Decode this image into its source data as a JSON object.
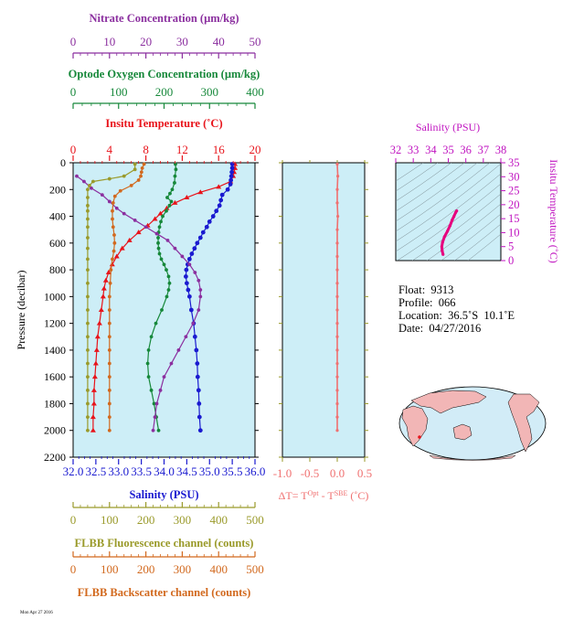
{
  "chart_data": [
    {
      "type": "line",
      "y_axis": {
        "label": "Pressure (decibar)",
        "range": [
          0,
          2200
        ],
        "inverted": true,
        "ticks": [
          "0",
          "200",
          "400",
          "600",
          "800",
          "1000",
          "1200",
          "1400",
          "1600",
          "1800",
          "2000",
          "2200"
        ]
      },
      "x_axes": [
        {
          "id": "nitrate",
          "label": "Nitrate Concentration (µm/kg)",
          "range": [
            0,
            50
          ],
          "ticks": [
            "0",
            "10",
            "20",
            "30",
            "40",
            "50"
          ],
          "color": "#8b2f9f",
          "position": "top"
        },
        {
          "id": "oxygen",
          "label": "Optode Oxygen Concentration (µm/kg)",
          "range": [
            0,
            400
          ],
          "ticks": [
            "0",
            "100",
            "200",
            "300",
            "400"
          ],
          "color": "#16883a",
          "position": "top"
        },
        {
          "id": "temperature",
          "label": "Insitu Temperature (˚C)",
          "range": [
            0,
            20
          ],
          "ticks": [
            "0",
            "4",
            "8",
            "12",
            "16",
            "20"
          ],
          "color": "#e8141b",
          "position": "top"
        },
        {
          "id": "salinity",
          "label": "Salinity (PSU)",
          "range": [
            32.0,
            36.0
          ],
          "ticks": [
            "32.0",
            "32.5",
            "33.0",
            "33.5",
            "34.0",
            "34.5",
            "35.0",
            "35.5",
            "36.0"
          ],
          "color": "#1a1ad0",
          "position": "bottom"
        },
        {
          "id": "fluor",
          "label": "FLBB Fluorescence channel (counts)",
          "range": [
            0,
            500
          ],
          "ticks": [
            "0",
            "100",
            "200",
            "300",
            "400",
            "500"
          ],
          "color": "#9a9a2a",
          "position": "bottom"
        },
        {
          "id": "backscatter",
          "label": "FLBB Backscatter channel (counts)",
          "range": [
            0,
            500
          ],
          "ticks": [
            "0",
            "100",
            "200",
            "300",
            "400",
            "500"
          ],
          "color": "#d2691e",
          "position": "bottom"
        }
      ],
      "series": [
        {
          "axis": "temperature",
          "color": "#e8141b",
          "marker": "triangle",
          "points": [
            [
              17.8,
              10
            ],
            [
              17.8,
              40
            ],
            [
              17.7,
              70
            ],
            [
              17.6,
              100
            ],
            [
              17.3,
              140
            ],
            [
              16.0,
              180
            ],
            [
              14.0,
              220
            ],
            [
              12.5,
              260
            ],
            [
              11.2,
              300
            ],
            [
              10.3,
              340
            ],
            [
              9.6,
              380
            ],
            [
              9.0,
              420
            ],
            [
              8.2,
              470
            ],
            [
              7.2,
              520
            ],
            [
              6.2,
              580
            ],
            [
              5.4,
              640
            ],
            [
              4.8,
              700
            ],
            [
              4.3,
              760
            ],
            [
              3.9,
              820
            ],
            [
              3.6,
              880
            ],
            [
              3.4,
              940
            ],
            [
              3.3,
              1000
            ],
            [
              3.1,
              1100
            ],
            [
              2.9,
              1200
            ],
            [
              2.7,
              1300
            ],
            [
              2.6,
              1400
            ],
            [
              2.5,
              1500
            ],
            [
              2.4,
              1600
            ],
            [
              2.3,
              1700
            ],
            [
              2.3,
              1800
            ],
            [
              2.2,
              1900
            ],
            [
              2.2,
              2000
            ]
          ]
        },
        {
          "axis": "salinity",
          "color": "#1a1ad0",
          "marker": "circle",
          "points": [
            [
              35.5,
              10
            ],
            [
              35.5,
              40
            ],
            [
              35.49,
              70
            ],
            [
              35.48,
              100
            ],
            [
              35.47,
              130
            ],
            [
              35.46,
              160
            ],
            [
              35.4,
              200
            ],
            [
              35.28,
              240
            ],
            [
              35.25,
              280
            ],
            [
              35.22,
              320
            ],
            [
              35.15,
              360
            ],
            [
              35.08,
              400
            ],
            [
              35.0,
              440
            ],
            [
              34.94,
              480
            ],
            [
              34.86,
              520
            ],
            [
              34.8,
              560
            ],
            [
              34.73,
              600
            ],
            [
              34.67,
              640
            ],
            [
              34.61,
              680
            ],
            [
              34.56,
              720
            ],
            [
              34.52,
              760
            ],
            [
              34.49,
              800
            ],
            [
              34.48,
              850
            ],
            [
              34.5,
              900
            ],
            [
              34.53,
              950
            ],
            [
              34.56,
              1000
            ],
            [
              34.6,
              1100
            ],
            [
              34.65,
              1200
            ],
            [
              34.68,
              1300
            ],
            [
              34.71,
              1400
            ],
            [
              34.73,
              1500
            ],
            [
              34.74,
              1600
            ],
            [
              34.76,
              1700
            ],
            [
              34.77,
              1800
            ],
            [
              34.78,
              1900
            ],
            [
              34.8,
              2000
            ]
          ]
        },
        {
          "axis": "oxygen",
          "color": "#16883a",
          "marker": "circle",
          "points": [
            [
              225,
              10
            ],
            [
              226,
              50
            ],
            [
              224,
              100
            ],
            [
              223,
              150
            ],
            [
              218,
              200
            ],
            [
              213,
              230
            ],
            [
              207,
              260
            ],
            [
              216,
              290
            ],
            [
              212,
              320
            ],
            [
              205,
              360
            ],
            [
              197,
              400
            ],
            [
              193,
              440
            ],
            [
              190,
              480
            ],
            [
              188,
              520
            ],
            [
              187,
              560
            ],
            [
              187,
              600
            ],
            [
              188,
              640
            ],
            [
              190,
              680
            ],
            [
              194,
              720
            ],
            [
              200,
              760
            ],
            [
              205,
              800
            ],
            [
              210,
              850
            ],
            [
              212,
              900
            ],
            [
              210,
              950
            ],
            [
              206,
              1000
            ],
            [
              195,
              1100
            ],
            [
              182,
              1200
            ],
            [
              172,
              1300
            ],
            [
              166,
              1400
            ],
            [
              164,
              1500
            ],
            [
              166,
              1600
            ],
            [
              172,
              1700
            ],
            [
              178,
              1800
            ],
            [
              183,
              1900
            ],
            [
              188,
              2000
            ]
          ]
        },
        {
          "axis": "nitrate",
          "color": "#8b2f9f",
          "marker": "circle",
          "points": [
            [
              1,
              100
            ],
            [
              3,
              140
            ],
            [
              5,
              190
            ],
            [
              8,
              240
            ],
            [
              10,
              290
            ],
            [
              12,
              340
            ],
            [
              14,
              380
            ],
            [
              17,
              430
            ],
            [
              20,
              480
            ],
            [
              23,
              530
            ],
            [
              26,
              580
            ],
            [
              28,
              640
            ],
            [
              30,
              700
            ],
            [
              32,
              760
            ],
            [
              33.5,
              820
            ],
            [
              34.5,
              880
            ],
            [
              35,
              950
            ],
            [
              35,
              1000
            ],
            [
              34.5,
              1100
            ],
            [
              33,
              1200
            ],
            [
              31,
              1300
            ],
            [
              29,
              1400
            ],
            [
              27,
              1500
            ],
            [
              25,
              1600
            ],
            [
              24,
              1700
            ],
            [
              23,
              1800
            ],
            [
              22.5,
              1900
            ],
            [
              22,
              2000
            ]
          ]
        },
        {
          "axis": "fluor",
          "color": "#9a9a2a",
          "marker": "circle",
          "points": [
            [
              170,
              10
            ],
            [
              170,
              50
            ],
            [
              140,
              100
            ],
            [
              100,
              120
            ],
            [
              55,
              140
            ],
            [
              45,
              170
            ],
            [
              40,
              200
            ],
            [
              40,
              260
            ],
            [
              40,
              320
            ],
            [
              40,
              360
            ],
            [
              40,
              420
            ],
            [
              40,
              480
            ],
            [
              40,
              560
            ],
            [
              40,
              640
            ],
            [
              40,
              720
            ],
            [
              40,
              800
            ],
            [
              40,
              900
            ],
            [
              40,
              1000
            ],
            [
              40,
              1100
            ],
            [
              40,
              1200
            ],
            [
              40,
              1300
            ],
            [
              40,
              1400
            ],
            [
              40,
              1500
            ],
            [
              40,
              1600
            ],
            [
              40,
              1700
            ],
            [
              40,
              1800
            ],
            [
              40,
              1900
            ],
            [
              40,
              2000
            ]
          ]
        },
        {
          "axis": "backscatter",
          "color": "#d2691e",
          "marker": "circle",
          "points": [
            [
              195,
              10
            ],
            [
              190,
              40
            ],
            [
              188,
              70
            ],
            [
              186,
              100
            ],
            [
              180,
              130
            ],
            [
              160,
              170
            ],
            [
              130,
              210
            ],
            [
              115,
              250
            ],
            [
              110,
              300
            ],
            [
              108,
              360
            ],
            [
              108,
              420
            ],
            [
              110,
              480
            ],
            [
              113,
              540
            ],
            [
              114,
              600
            ],
            [
              112,
              660
            ],
            [
              108,
              720
            ],
            [
              104,
              800
            ],
            [
              102,
              900
            ],
            [
              100,
              1000
            ],
            [
              100,
              1100
            ],
            [
              100,
              1200
            ],
            [
              100,
              1300
            ],
            [
              100,
              1400
            ],
            [
              100,
              1500
            ],
            [
              100,
              1600
            ],
            [
              100,
              1700
            ],
            [
              100,
              1800
            ],
            [
              100,
              1900
            ],
            [
              100,
              2000
            ]
          ]
        }
      ]
    },
    {
      "type": "line",
      "xlabel": "ΔT= T",
      "xlabel_sup1": "Opt",
      "xlabel_mid": " - T",
      "xlabel_sup2": "SBE",
      "xlabel_unit": " (˚C)",
      "xlim": [
        -1.0,
        0.5
      ],
      "x_ticks": [
        "-1.0",
        "-0.5",
        "0.0",
        "0.5"
      ],
      "ylim": [
        0,
        2200
      ],
      "color": "#f07070",
      "series": [
        {
          "points": [
            [
              0.0,
              10
            ],
            [
              0.01,
              100
            ],
            [
              0.0,
              200
            ],
            [
              0.0,
              300
            ],
            [
              0.01,
              400
            ],
            [
              0.0,
              500
            ],
            [
              0.0,
              600
            ],
            [
              0.0,
              700
            ],
            [
              0.0,
              800
            ],
            [
              0.0,
              900
            ],
            [
              0.0,
              1000
            ],
            [
              0.0,
              1100
            ],
            [
              0.0,
              1200
            ],
            [
              0.0,
              1300
            ],
            [
              0.0,
              1400
            ],
            [
              0.0,
              1500
            ],
            [
              0.0,
              1600
            ],
            [
              0.0,
              1700
            ],
            [
              0.0,
              1800
            ],
            [
              0.0,
              1900
            ],
            [
              0.0,
              2000
            ]
          ]
        }
      ]
    },
    {
      "type": "line",
      "title": "Salinity (PSU)",
      "xlim": [
        32,
        38
      ],
      "x_ticks": [
        "32",
        "33",
        "34",
        "35",
        "36",
        "37",
        "38"
      ],
      "ylabel": "Insitu Temperature (˚C)",
      "ylim": [
        0,
        35
      ],
      "y_ticks": [
        "0",
        "5",
        "10",
        "15",
        "20",
        "25",
        "30",
        "35"
      ],
      "color": "#e6007e",
      "series": [
        {
          "points": [
            [
              34.7,
              2.2
            ],
            [
              34.65,
              3.5
            ],
            [
              34.63,
              5.0
            ],
            [
              34.67,
              6.5
            ],
            [
              34.78,
              8.5
            ],
            [
              34.95,
              10.5
            ],
            [
              35.1,
              12.5
            ],
            [
              35.22,
              14.5
            ],
            [
              35.32,
              15.8
            ],
            [
              35.42,
              17.2
            ],
            [
              35.48,
              17.8
            ]
          ]
        }
      ]
    }
  ],
  "info": {
    "float": "Float:  9313",
    "profile": "Profile:  066",
    "location": "Location:  36.5˚S  10.1˚E",
    "date": "Date:  04/27/2016"
  },
  "footer_text": "Mon Apr 27 2016"
}
